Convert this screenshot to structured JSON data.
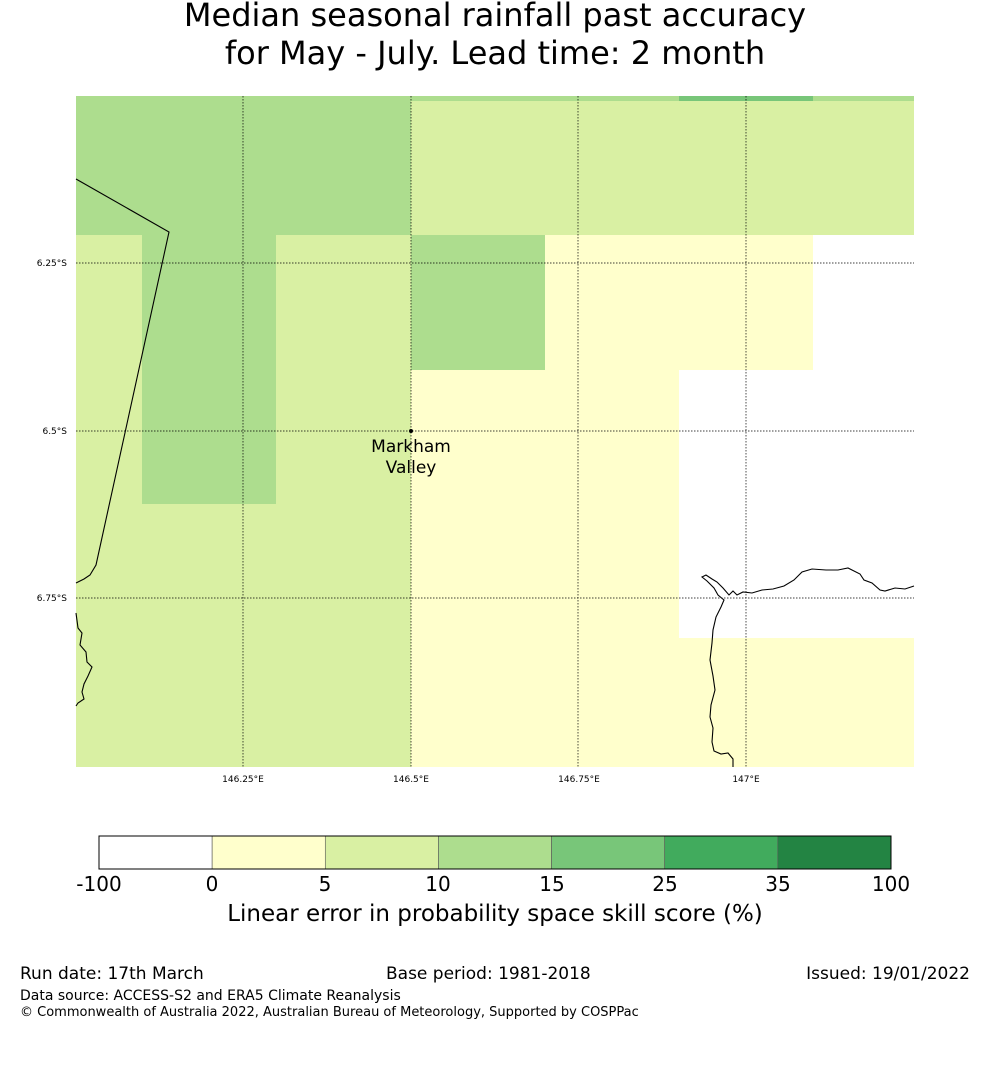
{
  "title": {
    "line1": "Median seasonal rainfall past accuracy",
    "line2": "for May - July. Lead time: 2 month"
  },
  "map": {
    "location": {
      "name_line1": "Markham",
      "name_line2": "Valley"
    },
    "lat_labels": [
      "6.25°S",
      "6.5°S",
      "6.75°S"
    ],
    "lon_labels": [
      "146.25°E",
      "146.5°E",
      "146.75°E",
      "147°E"
    ]
  },
  "legend": {
    "title": "Linear error in probability space skill score (%)",
    "ticks": [
      "-100",
      "0",
      "5",
      "10",
      "15",
      "25",
      "35",
      "100"
    ],
    "colors": [
      "#ffffff",
      "#ffffcc",
      "#d9f0a3",
      "#addd8e",
      "#78c679",
      "#41ab5d",
      "#238443"
    ]
  },
  "footer": {
    "run_date": "Run date: 17th March",
    "base_period": "Base period: 1981-2018",
    "issued": "Issued: 19/01/2022",
    "data_source": "Data source: ACCESS-S2 and ERA5 Climate Reanalysis",
    "copyright": "© Commonwealth of Australia 2022, Australian Bureau of Meteorology, Supported by COSPPac"
  }
}
